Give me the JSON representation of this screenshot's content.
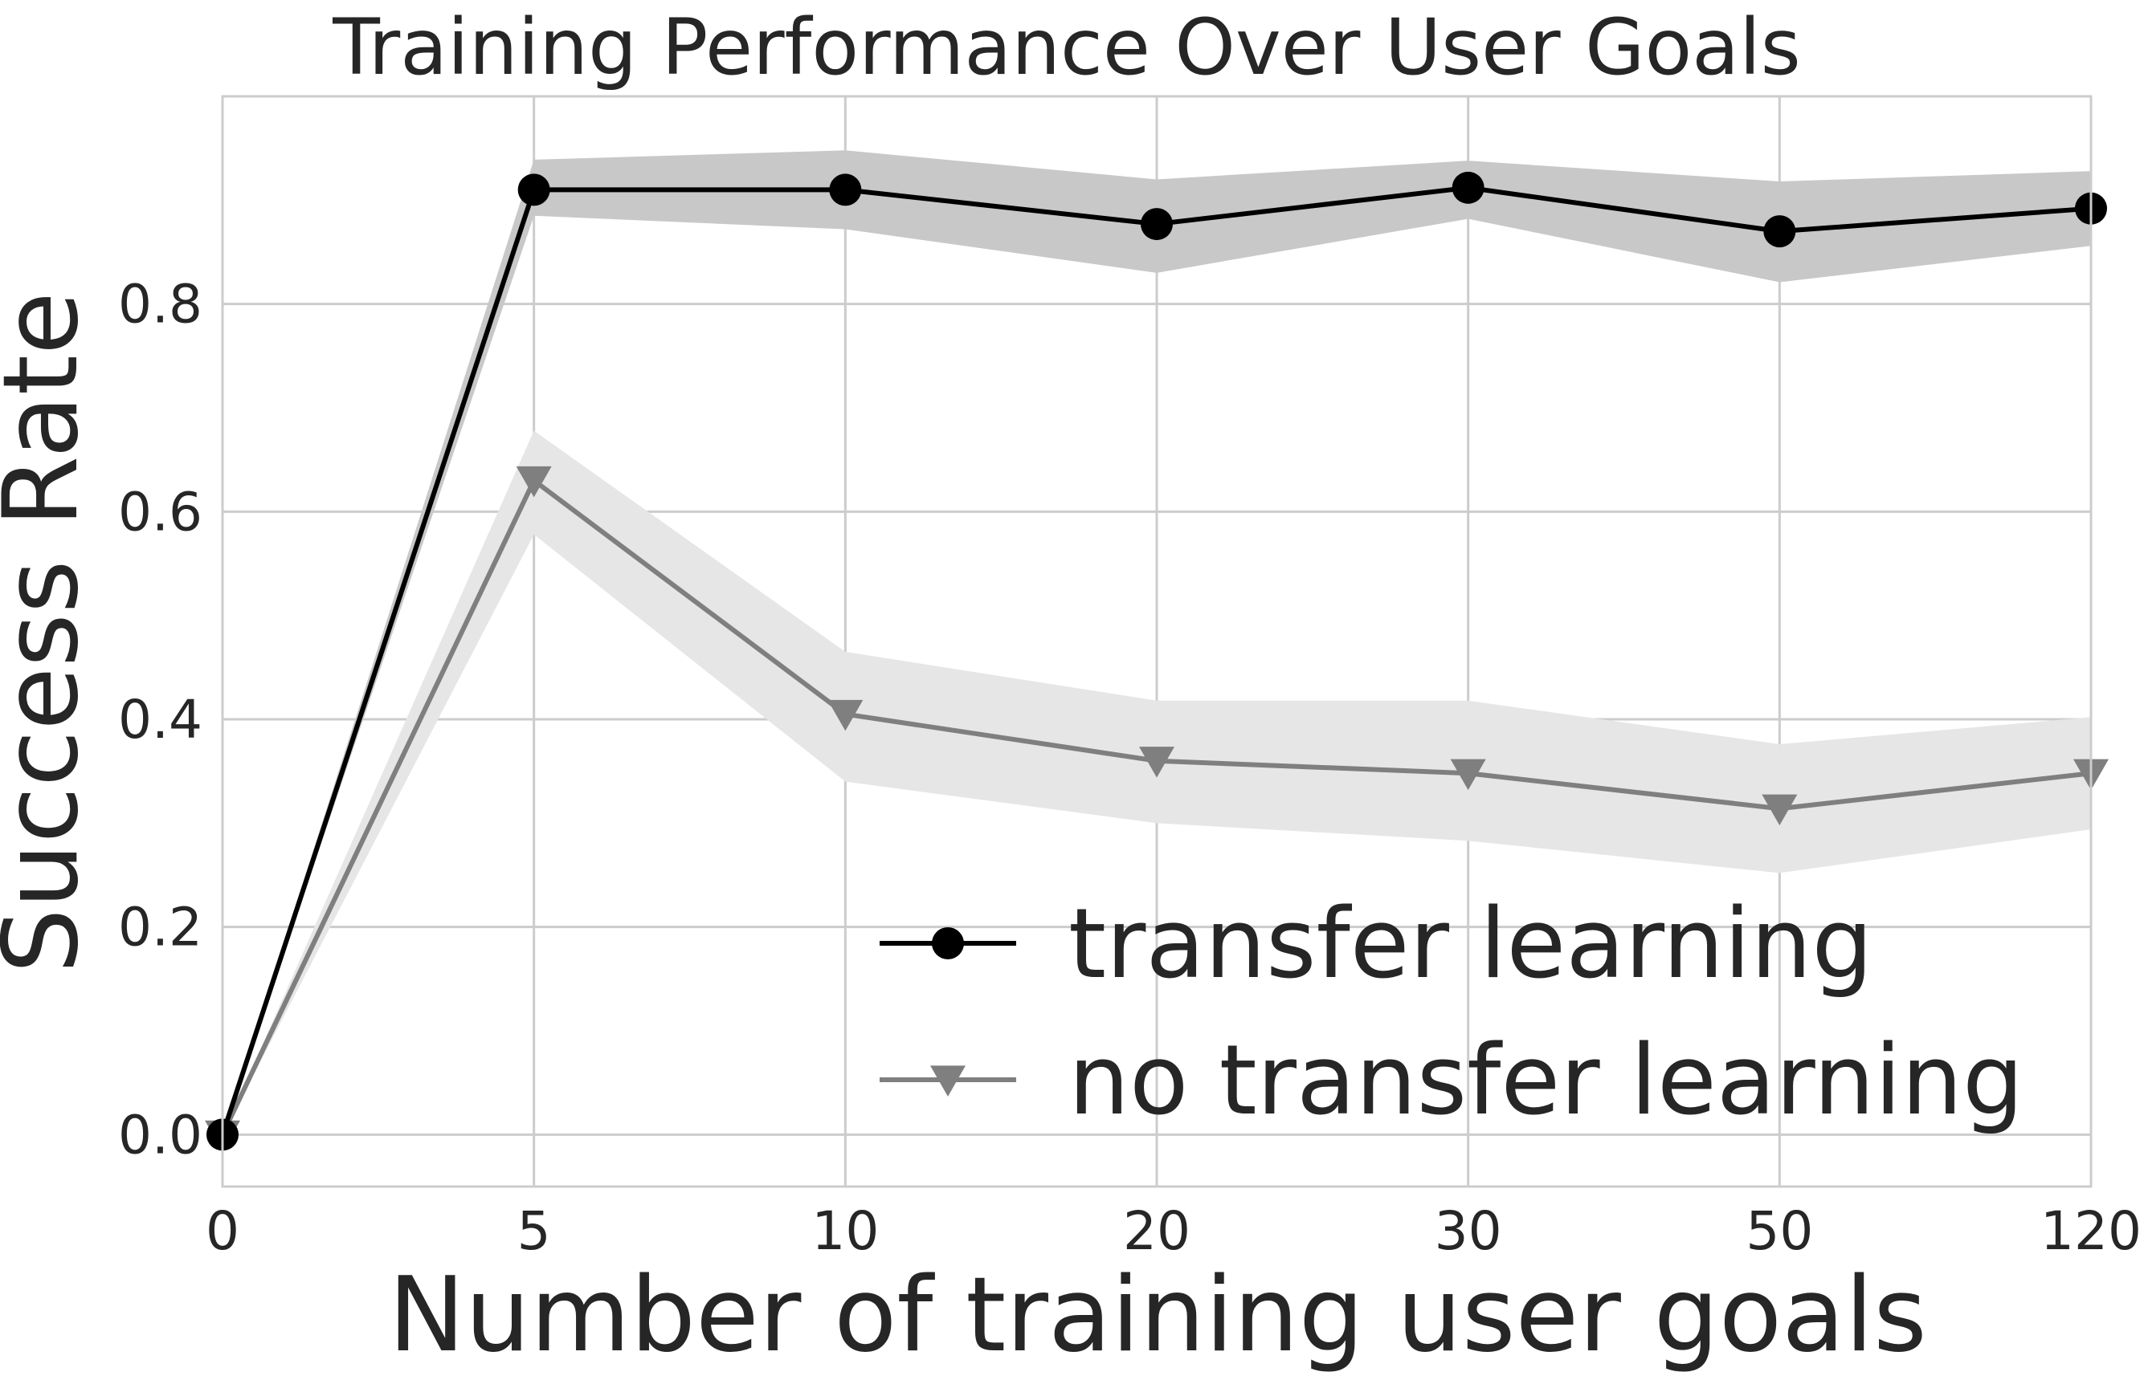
{
  "chart_data": {
    "type": "line",
    "title": "Training Performance Over User Goals",
    "xlabel": "Number of training user goals",
    "ylabel": "Success Rate",
    "categories": [
      "0",
      "5",
      "10",
      "20",
      "30",
      "50",
      "120"
    ],
    "x_scale": "categorical",
    "ylim": [
      -0.05,
      1.0
    ],
    "yticks": [
      "0.0",
      "0.2",
      "0.4",
      "0.6",
      "0.8"
    ],
    "ytick_values": [
      0.0,
      0.2,
      0.4,
      0.6,
      0.8
    ],
    "grid": true,
    "legend_position": "lower-right",
    "series": [
      {
        "name": "transfer learning",
        "marker": "circle",
        "color": "#000000",
        "band_color": "#c8c8c8",
        "values": [
          0.0,
          0.91,
          0.91,
          0.877,
          0.912,
          0.87,
          0.892
        ],
        "lower": [
          0.0,
          0.885,
          0.872,
          0.83,
          0.882,
          0.821,
          0.856
        ],
        "upper": [
          0.0,
          0.939,
          0.948,
          0.92,
          0.938,
          0.918,
          0.928
        ]
      },
      {
        "name": "no transfer learning",
        "marker": "triangle-down",
        "color": "#7f7f7f",
        "band_color": "#e6e6e6",
        "values": [
          0.0,
          0.63,
          0.405,
          0.36,
          0.348,
          0.314,
          0.348
        ],
        "lower": [
          0.0,
          0.578,
          0.34,
          0.3,
          0.283,
          0.252,
          0.294
        ],
        "upper": [
          0.0,
          0.678,
          0.465,
          0.418,
          0.418,
          0.376,
          0.402
        ]
      }
    ]
  }
}
